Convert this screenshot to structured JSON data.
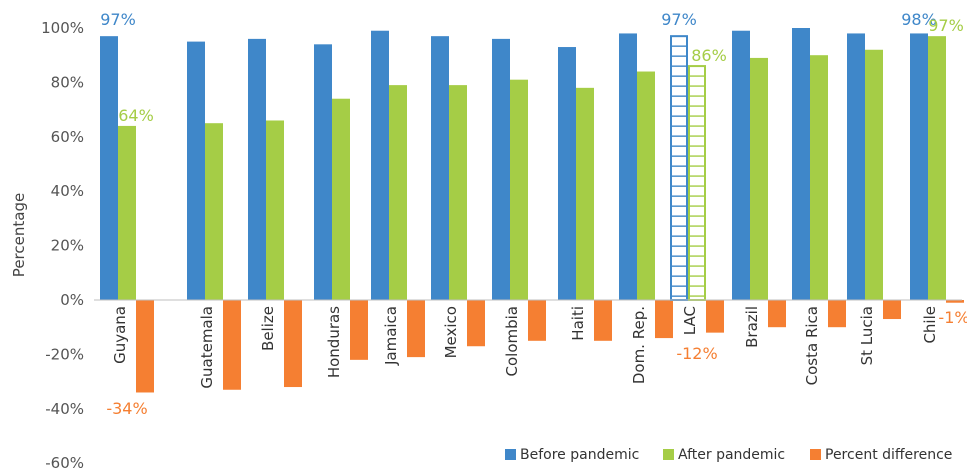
{
  "chart_data": {
    "type": "bar",
    "ylabel": "Percentage",
    "ylim": [
      -60,
      100
    ],
    "yticks": [
      -60,
      -40,
      -20,
      0,
      20,
      40,
      60,
      80,
      100
    ],
    "ytick_labels": [
      "-60%",
      "-40%",
      "-20%",
      "0%",
      "20%",
      "40%",
      "60%",
      "80%",
      "100%"
    ],
    "grid": false,
    "legend_position": "bottom-right",
    "categories": [
      "Guyana",
      "Guatemala",
      "Belize",
      "Honduras",
      "Jamaica",
      "Mexico",
      "Colombia",
      "Haiti",
      "Dom. Rep.",
      "LAC",
      "Brazil",
      "Costa Rica",
      "St Lucia",
      "Chile"
    ],
    "highlight_category": "LAC",
    "series": [
      {
        "name": "Before pandemic",
        "color": "#3F87C9",
        "values": [
          97,
          95,
          96,
          94,
          99,
          97,
          96,
          93,
          98,
          97,
          99,
          100,
          98,
          98
        ]
      },
      {
        "name": "After pandemic",
        "color": "#A5CD46",
        "values": [
          64,
          65,
          66,
          74,
          79,
          79,
          81,
          78,
          84,
          86,
          89,
          90,
          92,
          97
        ]
      },
      {
        "name": "Percent difference",
        "color": "#F57F32",
        "values": [
          -34,
          -33,
          -32,
          -22,
          -21,
          -17,
          -15,
          -15,
          -14,
          -12,
          -10,
          -10,
          -7,
          -1
        ]
      }
    ],
    "data_labels": [
      {
        "category": "Guyana",
        "series": 0,
        "text": "97%",
        "color": "#3F87C9"
      },
      {
        "category": "Guyana",
        "series": 1,
        "text": "64%",
        "color": "#A5CD46"
      },
      {
        "category": "Guyana",
        "series": 2,
        "text": "-34%",
        "color": "#F57F32"
      },
      {
        "category": "LAC",
        "series": 0,
        "text": "97%",
        "color": "#3F87C9"
      },
      {
        "category": "LAC",
        "series": 1,
        "text": "86%",
        "color": "#A5CD46"
      },
      {
        "category": "LAC",
        "series": 2,
        "text": "-12%",
        "color": "#F57F32"
      },
      {
        "category": "Chile",
        "series": 0,
        "text": "98%",
        "color": "#3F87C9"
      },
      {
        "category": "Chile",
        "series": 1,
        "text": "97%",
        "color": "#A5CD46"
      },
      {
        "category": "Chile",
        "series": 2,
        "text": "-1%",
        "color": "#F57F32"
      }
    ]
  }
}
